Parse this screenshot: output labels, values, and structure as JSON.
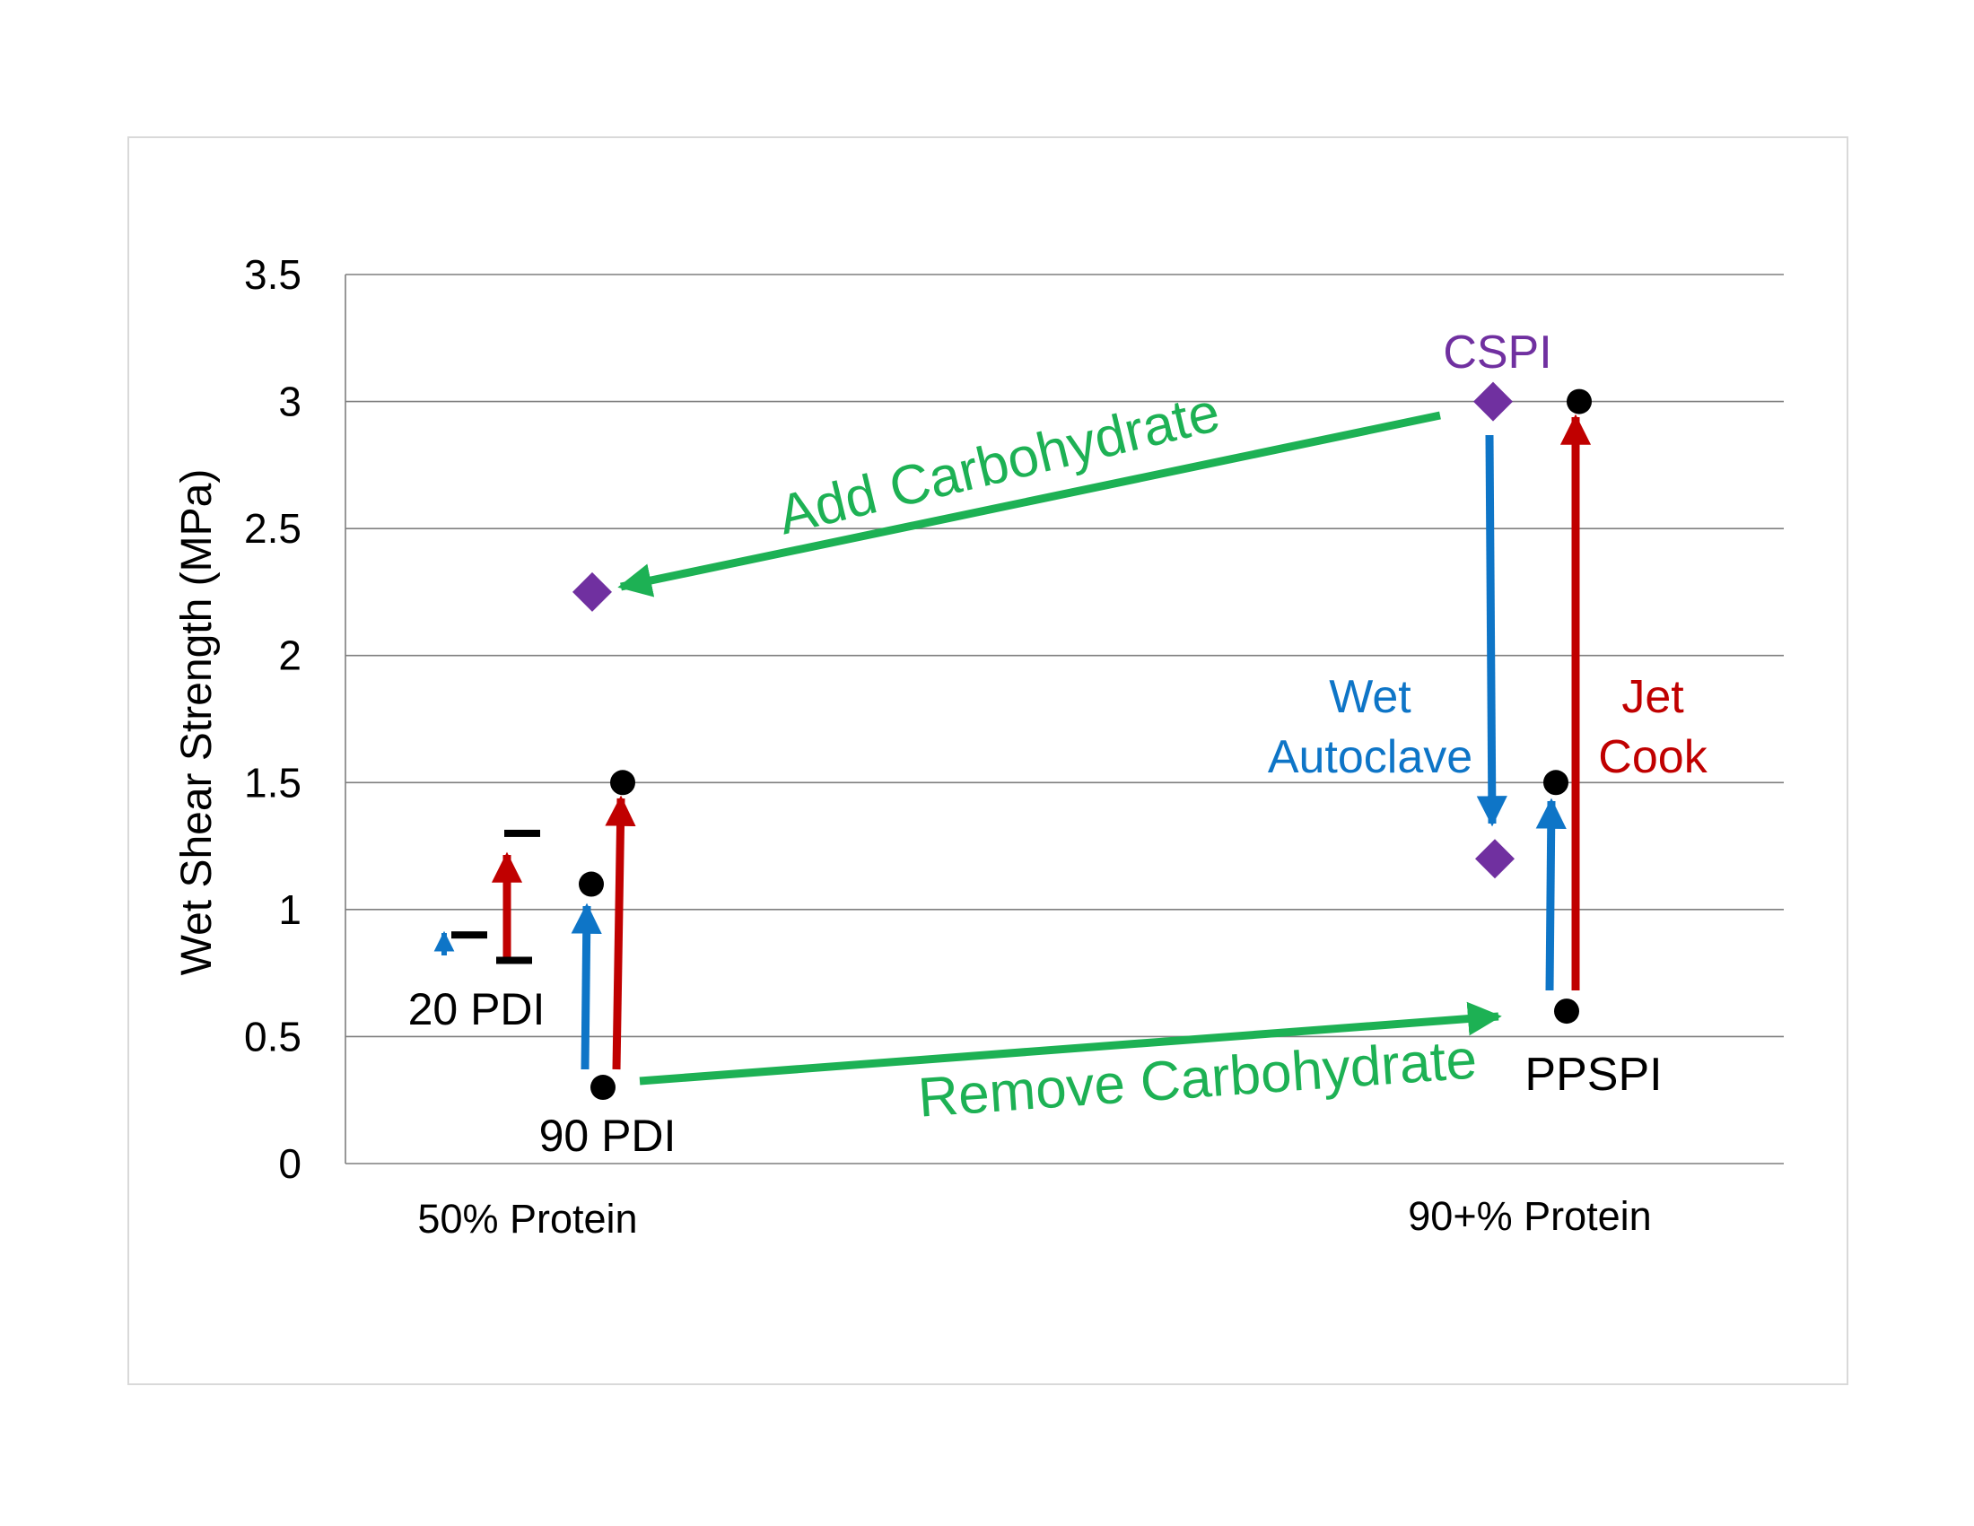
{
  "chart_data": {
    "type": "scatter",
    "title": "",
    "ylabel": "Wet Shear Strength (MPa)",
    "ylim": [
      0,
      3.5
    ],
    "y_ticks": [
      "0",
      "0.5",
      "1",
      "1.5",
      "2",
      "2.5",
      "3",
      "3.5"
    ],
    "y_tick_values": [
      0,
      0.5,
      1,
      1.5,
      2,
      2.5,
      3,
      3.5
    ],
    "x_categories": [
      "50% Protein",
      "90+% Protein"
    ],
    "grid": true,
    "series": [
      {
        "marker": "dash",
        "color": "#000000",
        "points": [
          {
            "category": "50% Protein",
            "group": "20 PDI",
            "y": 0.9
          },
          {
            "category": "50% Protein",
            "group": "20 PDI",
            "y": 0.8
          },
          {
            "category": "50% Protein",
            "group": "20 PDI",
            "y": 1.3
          }
        ]
      },
      {
        "marker": "circle",
        "color": "#000000",
        "points": [
          {
            "category": "50% Protein",
            "group": "90 PDI",
            "y": 0.3
          },
          {
            "category": "50% Protein",
            "group": "90 PDI",
            "y": 1.1
          },
          {
            "category": "50% Protein",
            "group": "90 PDI",
            "y": 1.5
          },
          {
            "category": "90+% Protein",
            "group": "PPSPI",
            "y": 0.6
          },
          {
            "category": "90+% Protein",
            "group": "PPSPI",
            "y": 1.5
          },
          {
            "category": "90+% Protein",
            "group": "PPSPI",
            "y": 3.0
          }
        ]
      },
      {
        "marker": "diamond",
        "color": "#7030a0",
        "points": [
          {
            "category": "50% Protein",
            "y": 2.25
          },
          {
            "category": "90+% Protein",
            "group": "CSPI",
            "y": 3.0
          },
          {
            "category": "90+% Protein",
            "group": "CSPI",
            "y": 1.2
          }
        ]
      }
    ],
    "annotations": {
      "add_carbohydrate": "Add  Carbohydrate",
      "remove_carbohydrate": "Remove Carbohydrate",
      "cspi": "CSPI",
      "ppspi": "PPSPI",
      "pdi_20": "20 PDI",
      "pdi_90": "90 PDI",
      "wet": "Wet",
      "autoclave": "Autoclave",
      "jet": "Jet",
      "cook": "Cook"
    },
    "colors": {
      "green": "#1db154",
      "blue": "#0e75c7",
      "red": "#c00000",
      "purple": "#7030a0",
      "grid": "#7f7f7f"
    }
  }
}
